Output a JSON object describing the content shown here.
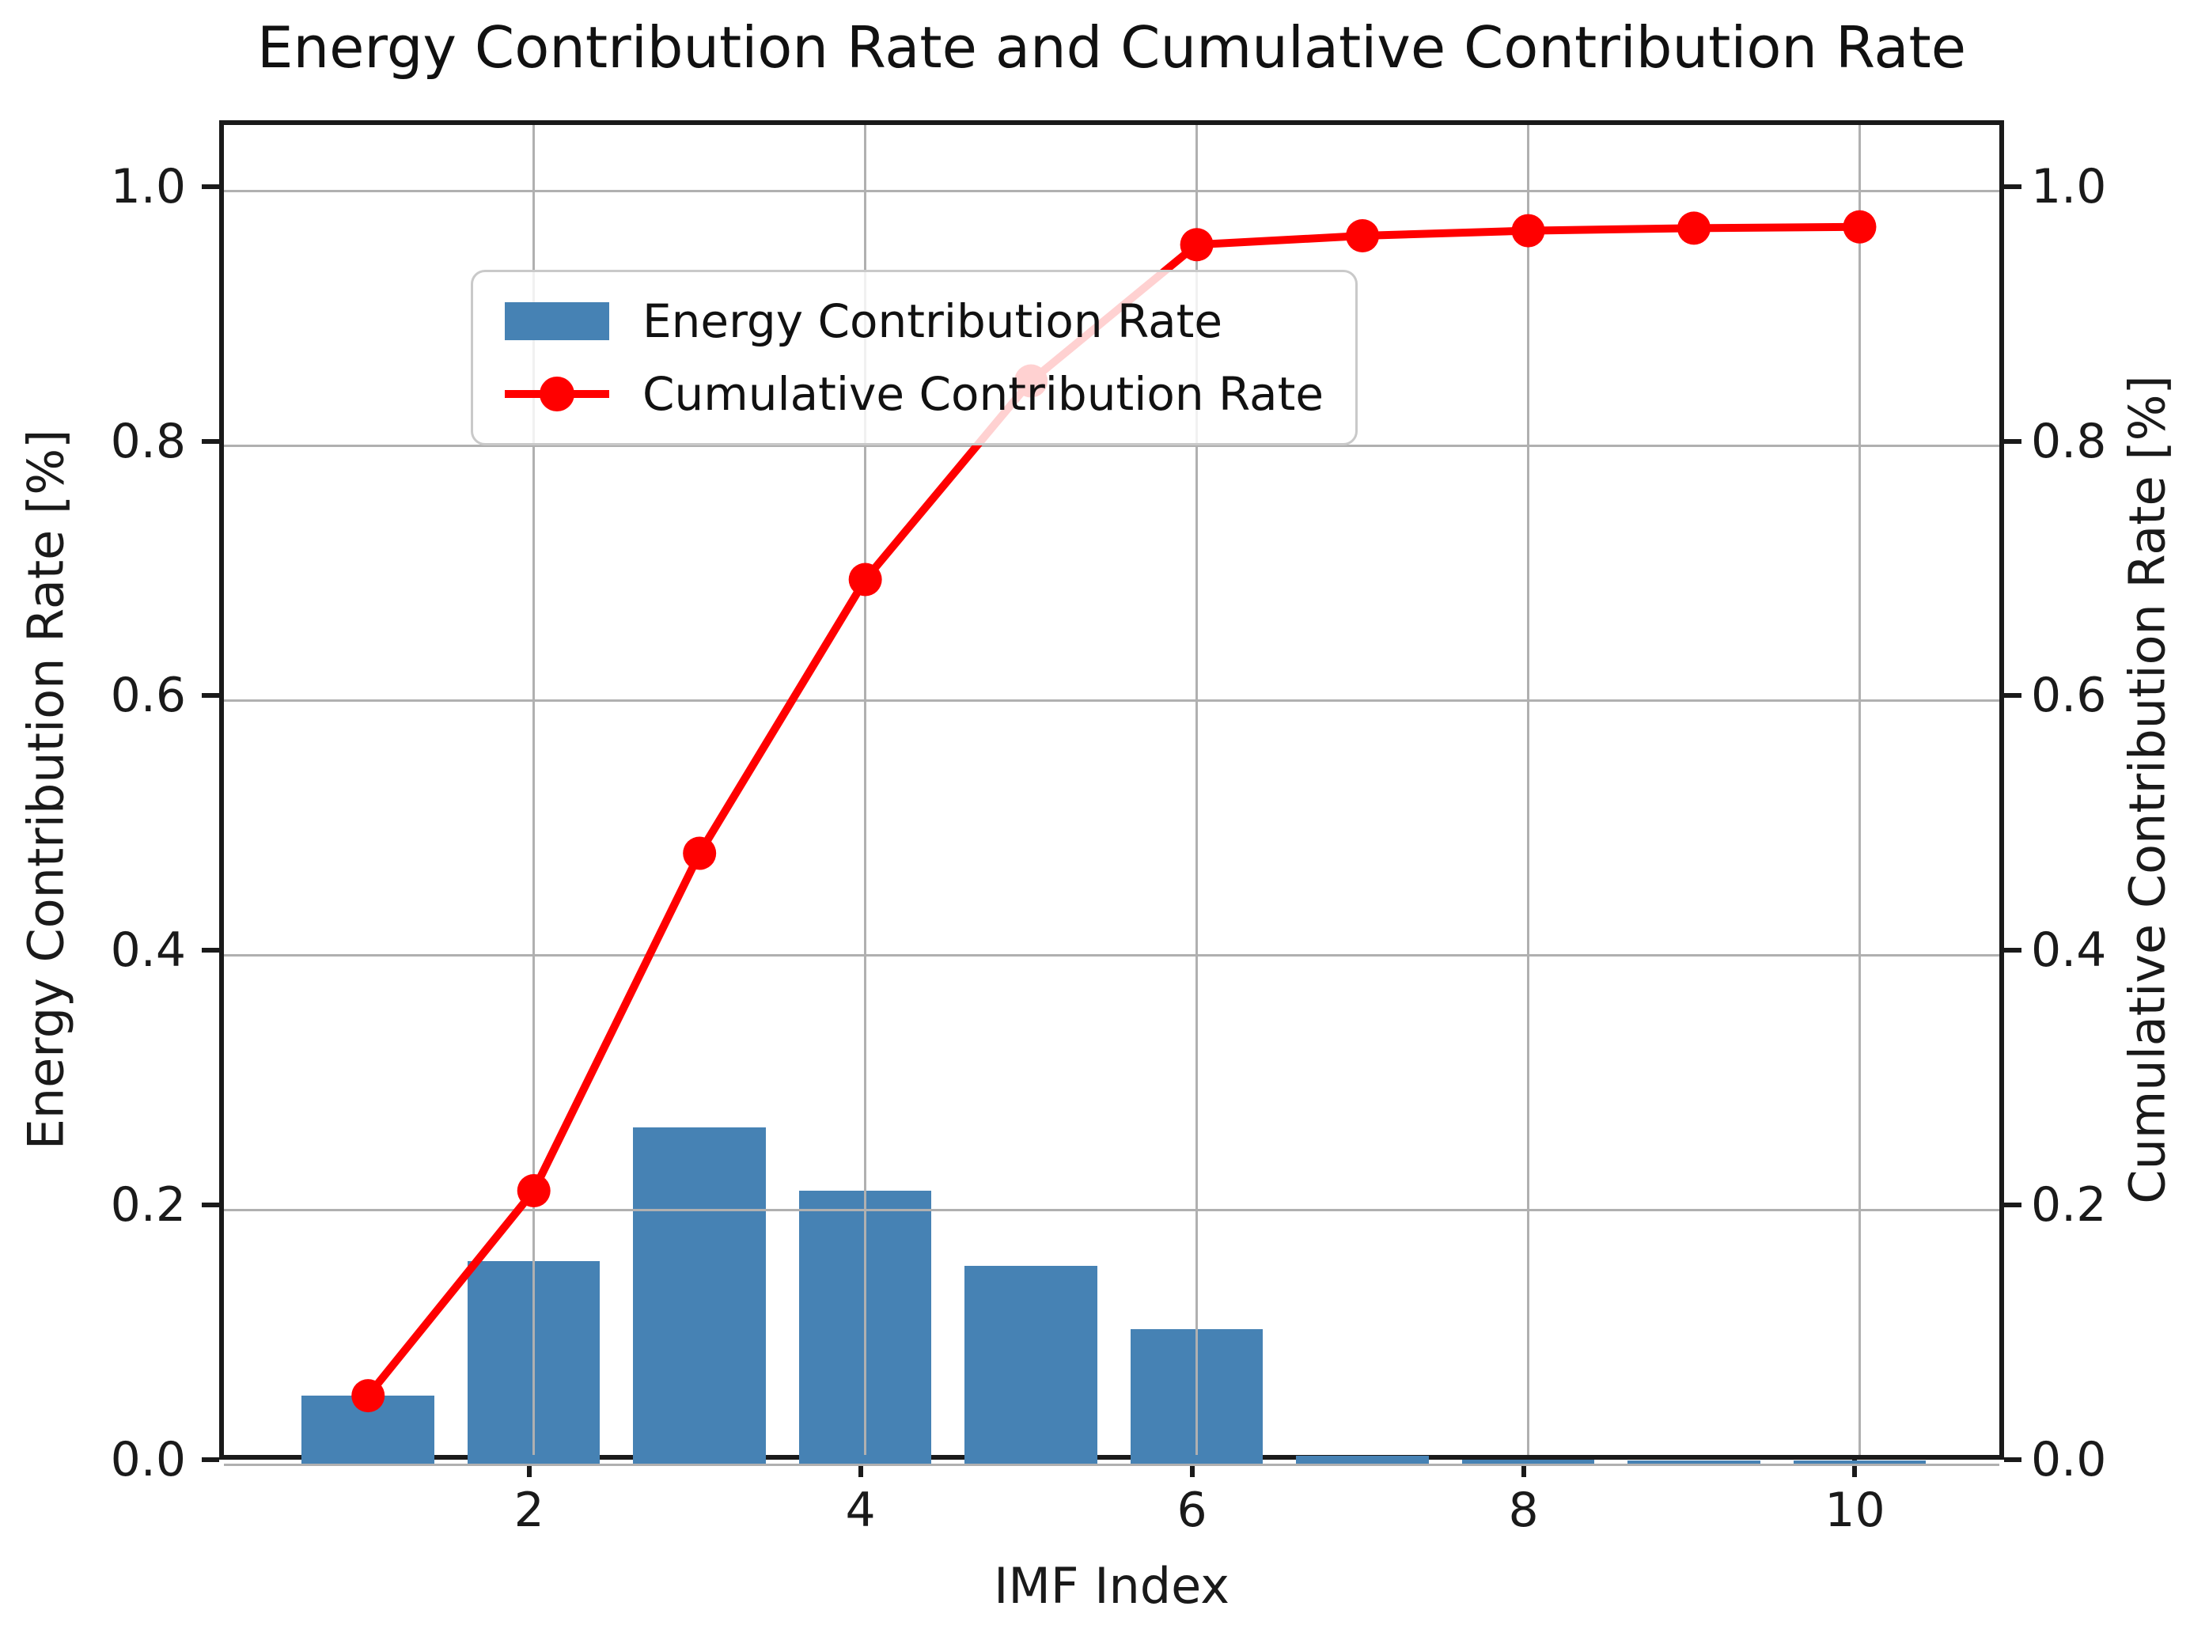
{
  "title": "Energy Contribution Rate and Cumulative Contribution Rate",
  "legend": {
    "energy_label": "Energy Contribution Rate",
    "cumulative_label": "Cumulative Contribution Rate"
  },
  "axes": {
    "xlabel": "IMF Index",
    "ylabel_left": "Energy Contribution Rate [%]",
    "ylabel_right": "Cumulative Contribution Rate [%]"
  },
  "colors": {
    "bar": "#4682b4",
    "line": "#ff0000",
    "grid": "#b0b0b0",
    "text": "#1a1a1a"
  },
  "chart_data": {
    "type": "bar",
    "title": "Energy Contribution Rate and Cumulative Contribution Rate",
    "xlabel": "IMF Index",
    "ylabel_left": "Energy Contribution Rate [%]",
    "ylabel_right": "Cumulative Contribution Rate [%]",
    "x": [
      1,
      2,
      3,
      4,
      5,
      6,
      7,
      8,
      9,
      10
    ],
    "series": [
      {
        "name": "Energy Contribution Rate",
        "type": "bar",
        "color": "#4682b4",
        "values": [
          0.054,
          0.16,
          0.265,
          0.215,
          0.156,
          0.106,
          0.007,
          0.004,
          0.003,
          0.003
        ]
      },
      {
        "name": "Cumulative Contribution Rate",
        "type": "line",
        "color": "#ff0000",
        "marker": "circle",
        "values": [
          0.054,
          0.215,
          0.48,
          0.695,
          0.851,
          0.958,
          0.965,
          0.969,
          0.971,
          0.972
        ]
      }
    ],
    "xlim": [
      0.13,
      10.9
    ],
    "ylim": [
      0.0,
      1.052
    ],
    "xtick_values": [
      2,
      4,
      6,
      8,
      10
    ],
    "xtick_labels": [
      "2",
      "4",
      "6",
      "8",
      "10"
    ],
    "ytick_values": [
      0.0,
      0.2,
      0.4,
      0.6,
      0.8,
      1.0
    ],
    "ytick_labels": [
      "0.0",
      "0.2",
      "0.4",
      "0.6",
      "0.8",
      "1.0"
    ],
    "bar_width": 0.8,
    "grid": true,
    "legend_position": "upper left"
  }
}
